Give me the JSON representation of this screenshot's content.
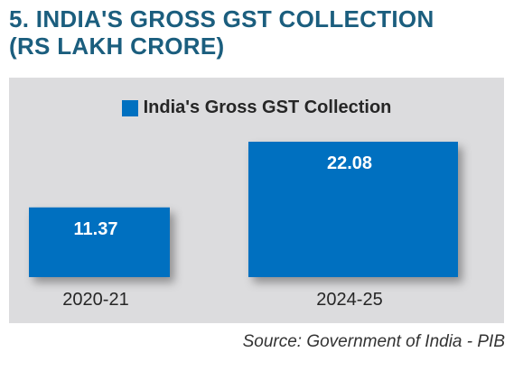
{
  "title": {
    "line1": "5. INDIA'S GROSS GST COLLECTION",
    "line2": "(RS LAKH CRORE)"
  },
  "source": "Source: Government of India - PIB",
  "colors": {
    "bar": "#0070c0",
    "title": "#1b5e7e",
    "panel": "#dcdcde"
  },
  "chart_data": {
    "type": "bar",
    "categories": [
      "2020-21",
      "2024-25"
    ],
    "series": [
      {
        "name": "India's Gross GST Collection",
        "values": [
          11.37,
          22.08
        ]
      }
    ],
    "data_labels": [
      "11.37",
      "22.08"
    ],
    "ylim": [
      0,
      22.08
    ],
    "grid": false,
    "legend": "top-center"
  }
}
